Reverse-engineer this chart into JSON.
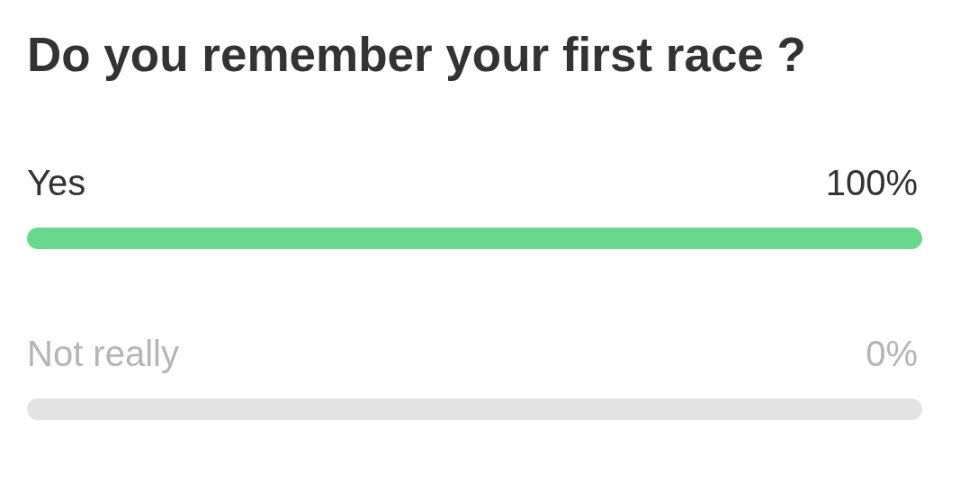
{
  "chart_data": {
    "type": "bar",
    "orientation": "horizontal",
    "title": "Do you remember your first race ?",
    "categories": [
      "Yes",
      "Not really"
    ],
    "series": [
      {
        "color": "#68d98c",
        "values": [
          100,
          0
        ],
        "value_labels": [
          "100%",
          "0%"
        ]
      }
    ],
    "bands": [
      {
        "axis": "x",
        "from": 0,
        "to": 100,
        "color": "#e3e3e3"
      }
    ],
    "tick_labels": "y"
  }
}
